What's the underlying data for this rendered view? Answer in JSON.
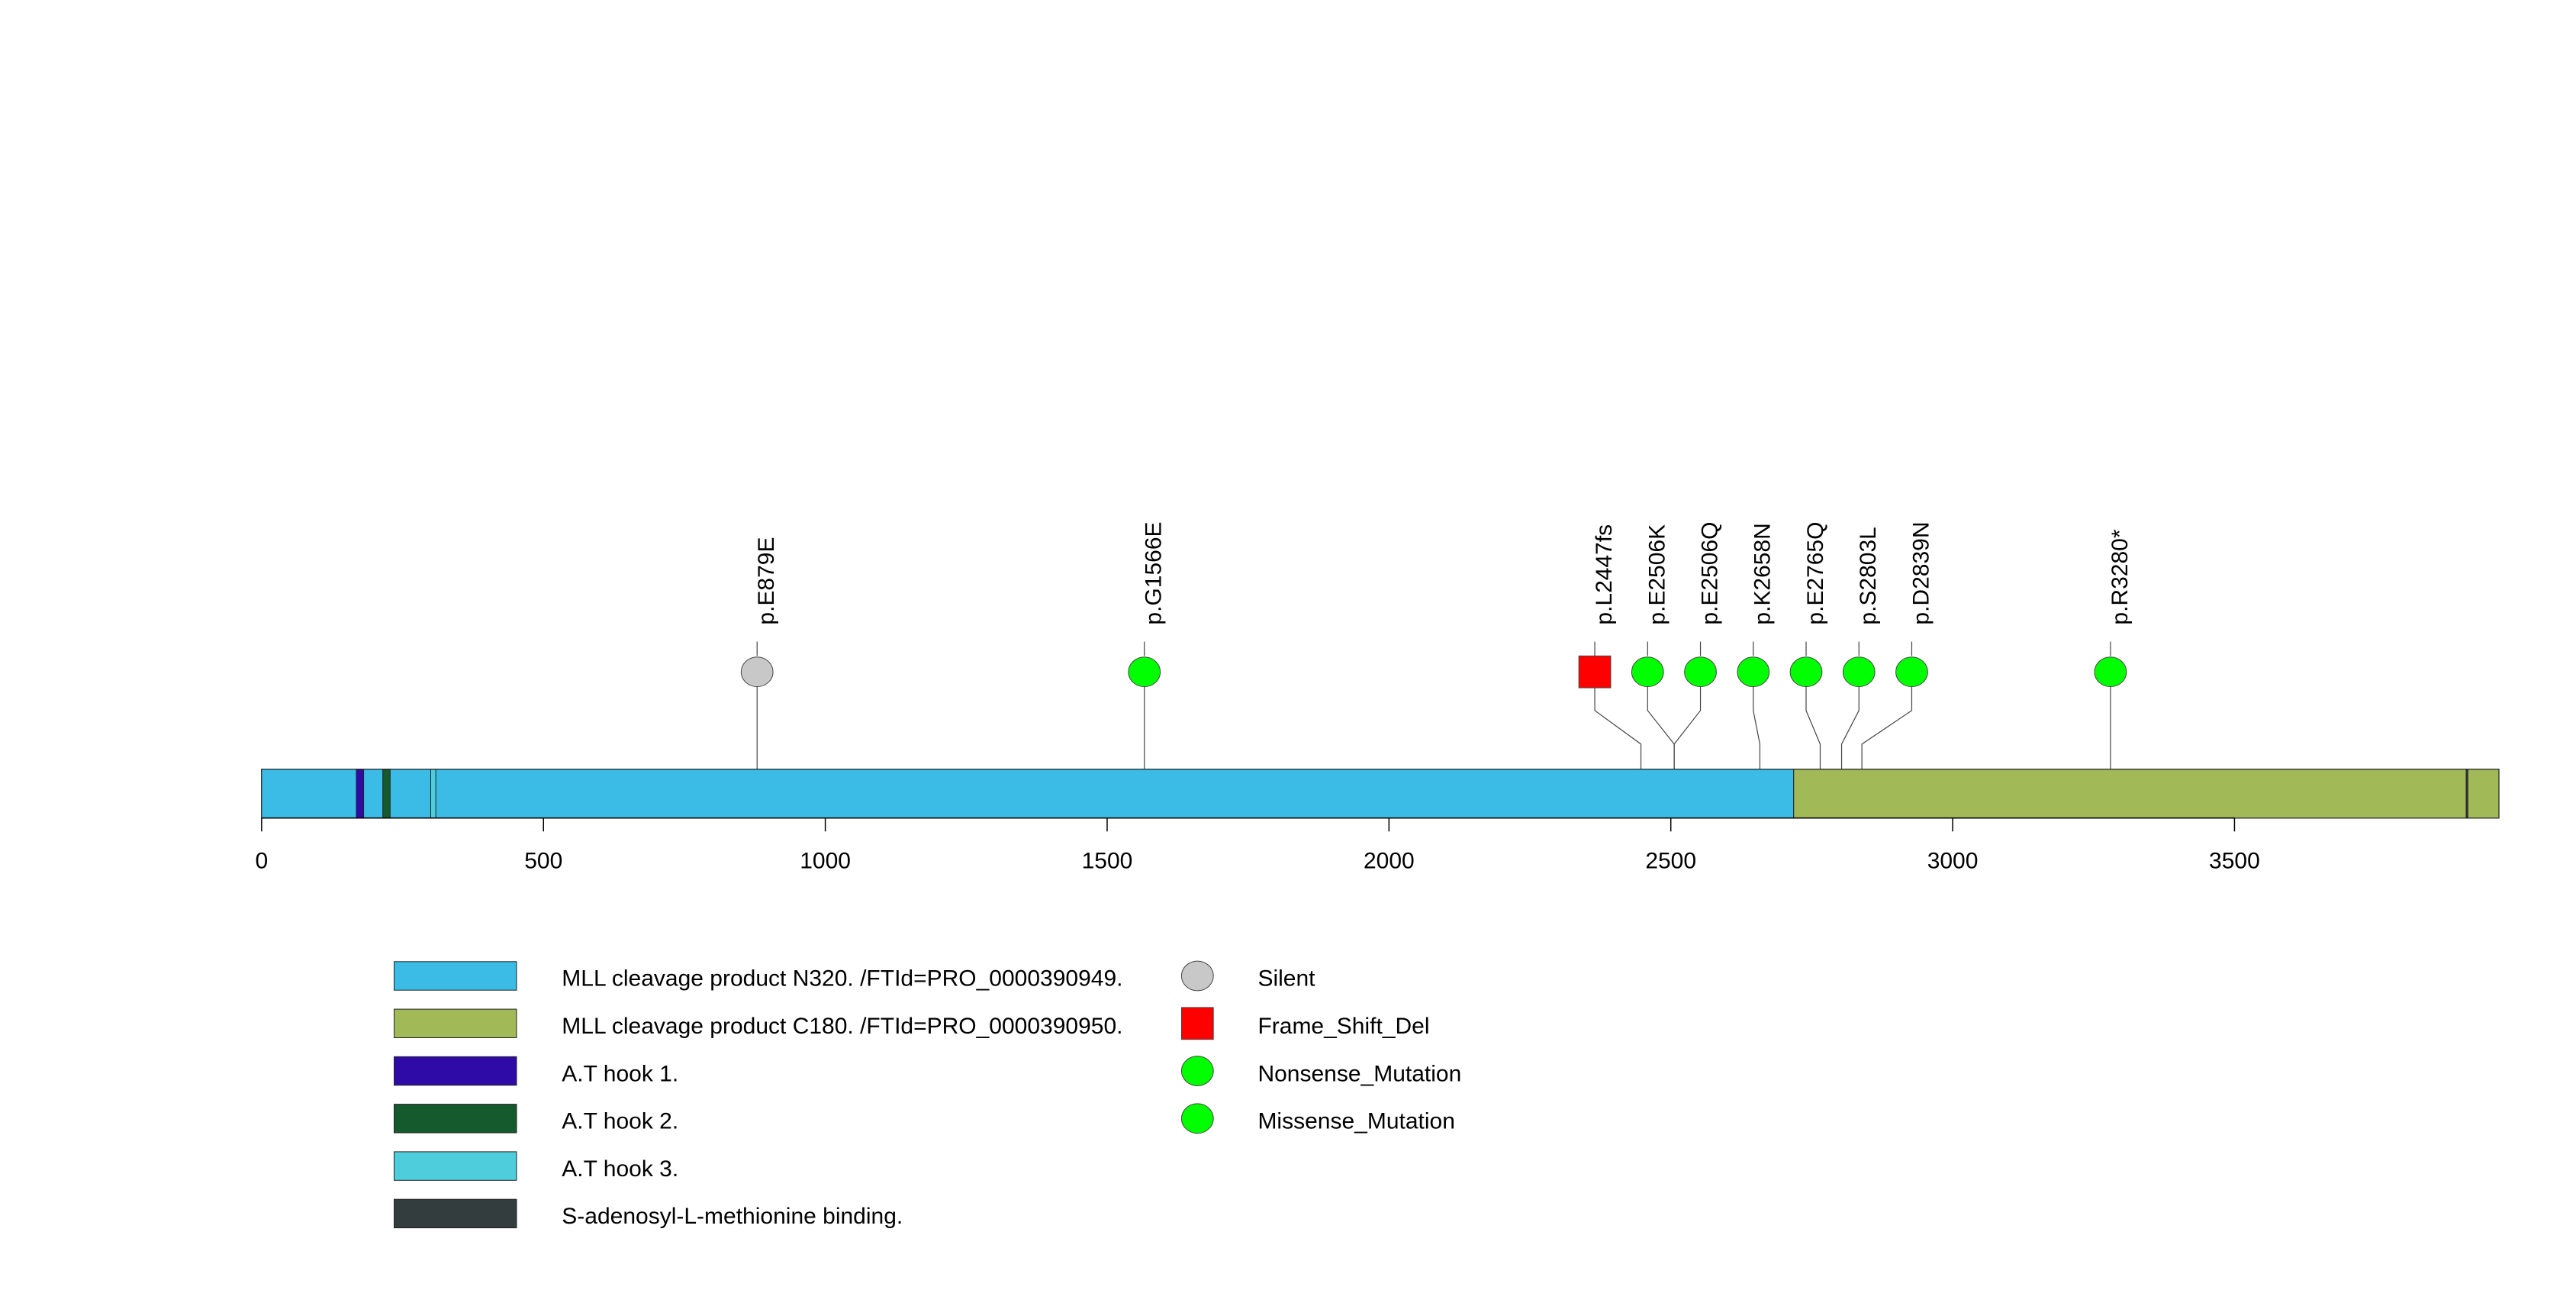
{
  "chart_data": {
    "type": "lollipop",
    "title": "",
    "xlabel": "",
    "ylabel": "",
    "protein_length": 3969,
    "xlim": [
      0,
      3969
    ],
    "xticks": [
      0,
      500,
      1000,
      1500,
      2000,
      2500,
      3000,
      3500
    ],
    "grid": false,
    "domains": [
      {
        "name": "MLL cleavage product N320. /FTId=PRO_0000390949.",
        "start": 1,
        "end": 2718,
        "color": "#3BBCE6"
      },
      {
        "name": "MLL cleavage product C180. /FTId=PRO_0000390950.",
        "start": 2719,
        "end": 3969,
        "color": "#A2B958"
      },
      {
        "name": "A.T hook 1.",
        "start": 169,
        "end": 181,
        "color": "#2E0BA6"
      },
      {
        "name": "A.T hook 2.",
        "start": 216,
        "end": 228,
        "color": "#145A2D"
      },
      {
        "name": "A.T hook 3.",
        "start": 301,
        "end": 309,
        "color": "#4ECEDD"
      },
      {
        "name": "S-adenosyl-L-methionine binding.",
        "start": 3912,
        "end": 3914,
        "color": "#333D3D"
      }
    ],
    "mutations": [
      {
        "label": "p.E879E",
        "position": 879,
        "type": "Silent"
      },
      {
        "label": "p.G1566E",
        "position": 1566,
        "type": "Missense_Mutation"
      },
      {
        "label": "p.L2447fs",
        "position": 2447,
        "type": "Frame_Shift_Del"
      },
      {
        "label": "p.E2506K",
        "position": 2506,
        "type": "Missense_Mutation"
      },
      {
        "label": "p.E2506Q",
        "position": 2506,
        "type": "Missense_Mutation"
      },
      {
        "label": "p.K2658N",
        "position": 2658,
        "type": "Missense_Mutation"
      },
      {
        "label": "p.E2765Q",
        "position": 2765,
        "type": "Missense_Mutation"
      },
      {
        "label": "p.S2803L",
        "position": 2803,
        "type": "Missense_Mutation"
      },
      {
        "label": "p.D2839N",
        "position": 2839,
        "type": "Missense_Mutation"
      },
      {
        "label": "p.R3280*",
        "position": 3280,
        "type": "Nonsense_Mutation"
      }
    ],
    "mutation_types": [
      {
        "name": "Silent",
        "shape": "circle",
        "color": "#C8C8C8"
      },
      {
        "name": "Frame_Shift_Del",
        "shape": "square",
        "color": "#FF0000"
      },
      {
        "name": "Nonsense_Mutation",
        "shape": "circle",
        "color": "#00FF00"
      },
      {
        "name": "Missense_Mutation",
        "shape": "circle",
        "color": "#00FF00"
      }
    ],
    "legend_position": "bottom-left"
  }
}
